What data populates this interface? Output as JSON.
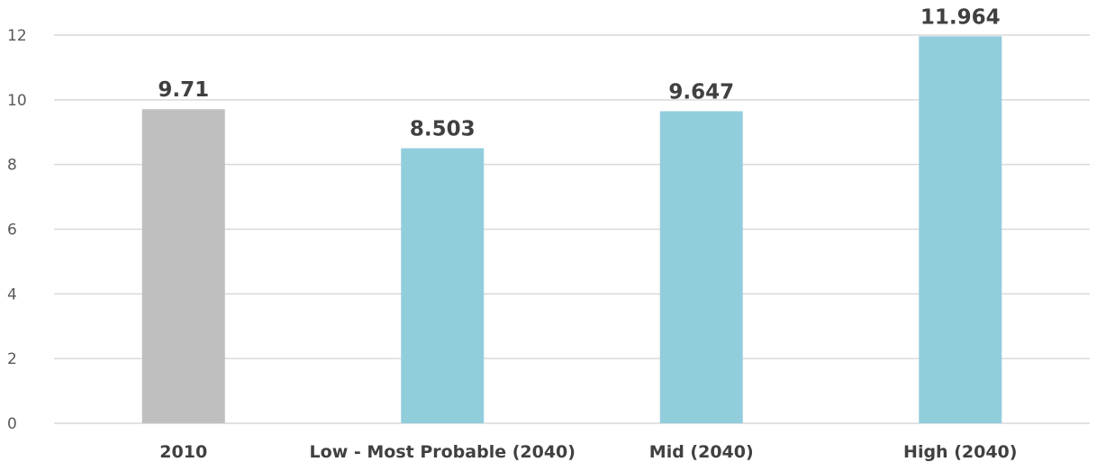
{
  "chart_data": {
    "type": "bar",
    "categories": [
      "2010",
      "Low - Most Probable (2040)",
      "Mid (2040)",
      "High (2040)"
    ],
    "values": [
      9.71,
      8.503,
      9.647,
      11.964
    ],
    "data_labels": [
      "9.71",
      "8.503",
      "9.647",
      "11.964"
    ],
    "bar_colors": [
      "#bfbfbf",
      "#92cddc",
      "#92cddc",
      "#92cddc"
    ],
    "y_ticks": [
      0,
      2,
      4,
      6,
      8,
      10,
      12
    ],
    "ylim": [
      0,
      12
    ],
    "grid": true,
    "legend": "none",
    "title": "",
    "xlabel": "",
    "ylabel": ""
  }
}
